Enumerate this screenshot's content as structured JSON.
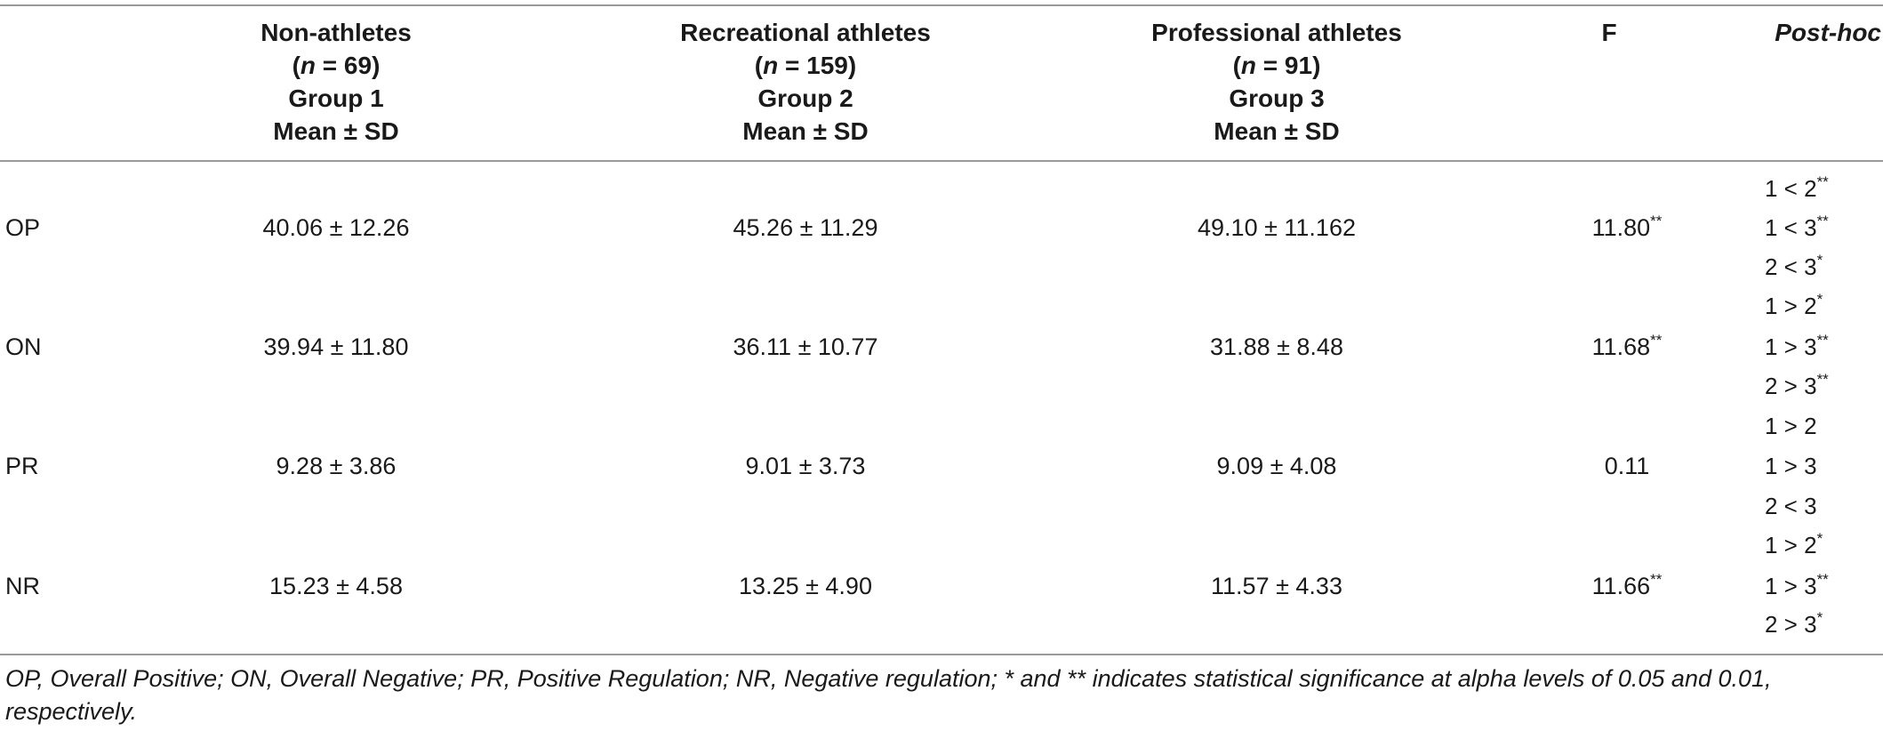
{
  "header": {
    "groups": [
      {
        "name": "Non-athletes",
        "n_prefix": "(",
        "n_label": "n",
        "n_value": " = 69)",
        "group": "Group 1",
        "stat": "Mean ± SD"
      },
      {
        "name": "Recreational athletes",
        "n_prefix": "(",
        "n_label": "n",
        "n_value": " = 159)",
        "group": "Group 2",
        "stat": "Mean ± SD"
      },
      {
        "name": "Professional athletes",
        "n_prefix": "(",
        "n_label": "n",
        "n_value": " = 91)",
        "group": "Group 3",
        "stat": "Mean ± SD"
      }
    ],
    "f_label": "F",
    "posthoc_label": "Post-hoc"
  },
  "rows": [
    {
      "label": "OP",
      "g1": "40.06 ± 12.26",
      "g2": "45.26 ± 11.29",
      "g3": "49.10 ± 11.162",
      "f": "11.80",
      "f_sig": "**",
      "posthoc": [
        {
          "text": "1 < 2",
          "sig": "**"
        },
        {
          "text": "1 < 3",
          "sig": "**"
        },
        {
          "text": "2 < 3",
          "sig": "*"
        }
      ]
    },
    {
      "label": "ON",
      "g1": "39.94 ± 11.80",
      "g2": "36.11 ± 10.77",
      "g3": "31.88 ± 8.48",
      "f": "11.68",
      "f_sig": "**",
      "posthoc": [
        {
          "text": "1 > 2",
          "sig": "*"
        },
        {
          "text": "1 > 3",
          "sig": "**"
        },
        {
          "text": "2 > 3",
          "sig": "**"
        }
      ]
    },
    {
      "label": "PR",
      "g1": "9.28 ± 3.86",
      "g2": "9.01 ± 3.73",
      "g3": "9.09 ± 4.08",
      "f": "0.11",
      "f_sig": "",
      "posthoc": [
        {
          "text": "1 > 2",
          "sig": ""
        },
        {
          "text": "1 > 3",
          "sig": ""
        },
        {
          "text": "2 < 3",
          "sig": ""
        }
      ]
    },
    {
      "label": "NR",
      "g1": "15.23 ± 4.58",
      "g2": "13.25 ± 4.90",
      "g3": "11.57 ± 4.33",
      "f": "11.66",
      "f_sig": "**",
      "posthoc": [
        {
          "text": "1 > 2",
          "sig": "*"
        },
        {
          "text": "1 > 3",
          "sig": "**"
        },
        {
          "text": "2 > 3",
          "sig": "*"
        }
      ]
    }
  ],
  "footnote": "OP, Overall Positive; ON, Overall Negative; PR, Positive Regulation; NR, Negative regulation; * and ** indicates statistical significance at alpha levels of 0.05 and 0.01, respectively."
}
